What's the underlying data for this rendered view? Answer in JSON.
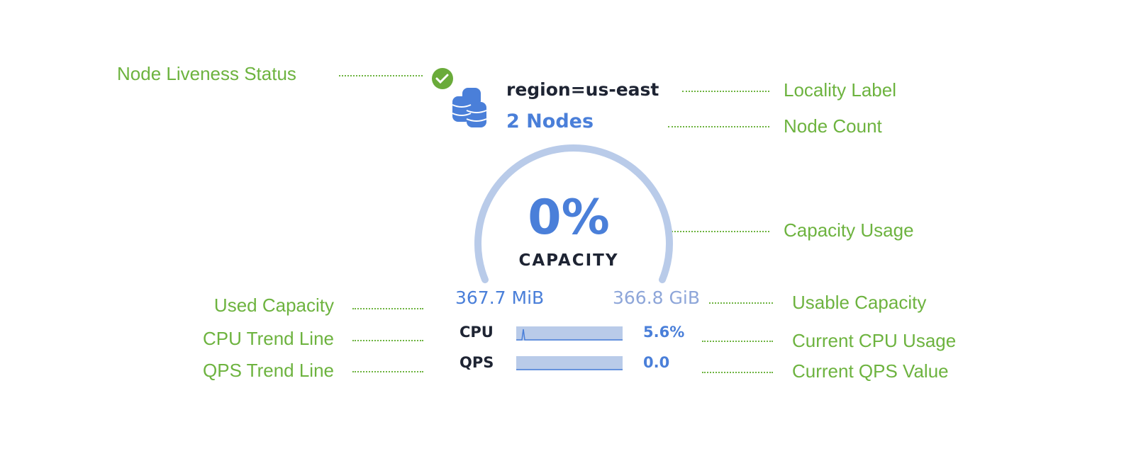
{
  "annotations": {
    "liveness": "Node Liveness Status",
    "locality": "Locality Label",
    "node_count": "Node Count",
    "capacity_usage": "Capacity Usage",
    "used_capacity": "Used Capacity",
    "usable_capacity": "Usable Capacity",
    "cpu_trend": "CPU Trend Line",
    "current_cpu": "Current CPU Usage",
    "qps_trend": "QPS Trend Line",
    "current_qps": "Current QPS Value"
  },
  "card": {
    "status": "live",
    "status_icon": "check-circle-icon",
    "nodes_icon": "database-stack-icon",
    "locality": "region=us-east",
    "node_count": "2 Nodes",
    "capacity_percent": "0%",
    "capacity_fraction": 0,
    "capacity_label": "CAPACITY",
    "used": "367.7 MiB",
    "usable": "366.8 GiB",
    "cpu_label": "CPU",
    "cpu_value": "5.6%",
    "qps_label": "QPS",
    "qps_value": "0.0"
  },
  "colors": {
    "annotation": "#6db33f",
    "accent": "#4a7fd9",
    "gauge_track": "#b9cbe9",
    "live": "#6aab3a"
  }
}
